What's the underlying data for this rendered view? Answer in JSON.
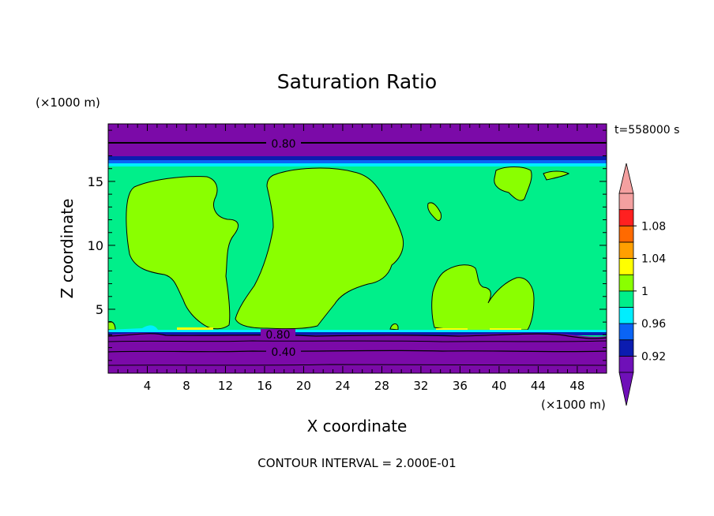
{
  "chart_data": {
    "type": "heatmap",
    "title": "Saturation Ratio",
    "time_label": "t=558000 s",
    "xlabel": "X coordinate",
    "ylabel": "Z coordinate",
    "x_unit": "(×1000 m)",
    "y_unit": "(×1000 m)",
    "xlim": [
      0,
      51
    ],
    "ylim": [
      0,
      19.5
    ],
    "x_ticks": [
      4,
      8,
      12,
      16,
      20,
      24,
      28,
      32,
      36,
      40,
      44,
      48
    ],
    "y_ticks": [
      5,
      10,
      15
    ],
    "footer": "CONTOUR INTERVAL = 2.000E-01",
    "contour_labels": [
      {
        "text": "0.80",
        "x": 18,
        "z": 18.2
      },
      {
        "text": "0.80",
        "x": 17.5,
        "z": 3.1
      },
      {
        "text": "0.40",
        "x": 17.5,
        "z": 1.8
      }
    ],
    "colorbar": {
      "levels": [
        0.92,
        0.96,
        1,
        1.04,
        1.08
      ],
      "tick_labels": [
        "0.92",
        "0.96",
        "1",
        "1.04",
        "1.08"
      ],
      "colors": [
        "#6f10b8",
        "#0b1cb0",
        "#0a64f5",
        "#00eefe",
        "#00ef8a",
        "#8aff00",
        "#ffff00",
        "#ff9f00",
        "#ff6a00",
        "#ff2020",
        "#f4a0a0"
      ],
      "under_color": "#6f10b8",
      "over_color": "#f4a0a0"
    },
    "regions": {
      "background_color": "#00ef8a",
      "top_band_color": "#7b0aa8",
      "bottom_band_color": "#7b0aa8",
      "supersaturated_color": "#8aff00"
    }
  }
}
